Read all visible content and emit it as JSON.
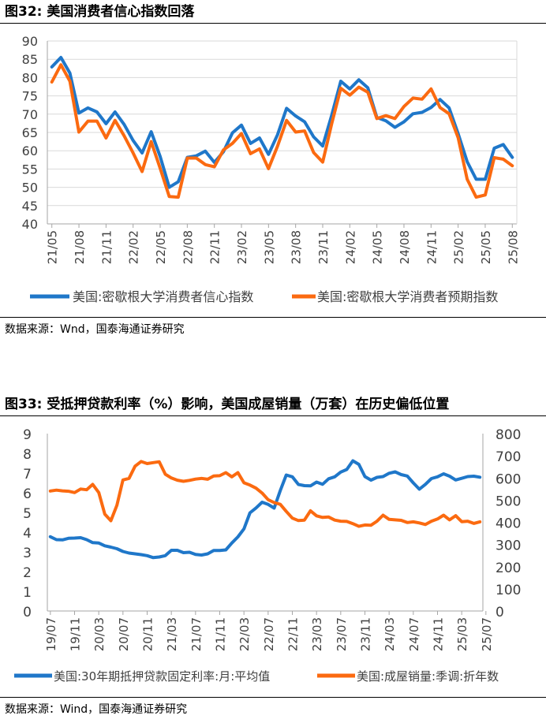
{
  "fig1": {
    "title": "图32:  美国消费者信心指数回落",
    "source": "数据来源：Wnd，国泰海通证券研究"
  },
  "fig2": {
    "title": "图33:  受抵押贷款利率（%）影响，美国成屋销量（万套）在历史偏低位置",
    "source": "数据来源：Wind，国泰海通证券研究"
  },
  "colors": {
    "blue": "#1f77c9",
    "orange": "#fb6a10",
    "grid": "#d9d9d9",
    "axis": "#a6a6a6"
  },
  "chart_data": [
    {
      "type": "line",
      "title": "图32:  美国消费者信心指数回落",
      "x_ticks": [
        "21/05",
        "21/08",
        "21/11",
        "22/02",
        "22/05",
        "22/08",
        "22/11",
        "23/02",
        "23/05",
        "23/08",
        "23/11",
        "24/02",
        "24/05",
        "24/08",
        "24/11",
        "25/02",
        "25/05",
        "25/08"
      ],
      "ylim": [
        40,
        90
      ],
      "y_ticks": [
        40,
        45,
        50,
        55,
        60,
        65,
        70,
        75,
        80,
        85,
        90
      ],
      "grid": true,
      "legend_position": "bottom",
      "series": [
        {
          "name": "美国:密歇根大学消费者信心指数",
          "color": "#1f77c9",
          "values": [
            82.9,
            85.5,
            81.2,
            70.3,
            71.7,
            70.6,
            67.4,
            70.6,
            67.2,
            62.8,
            59.4,
            65.2,
            58.4,
            50.0,
            51.5,
            58.2,
            58.6,
            59.9,
            56.8,
            59.7,
            64.9,
            67.0,
            62.0,
            63.5,
            59.0,
            64.4,
            71.6,
            69.5,
            67.9,
            63.8,
            61.3,
            69.7,
            79.0,
            76.9,
            79.4,
            77.2,
            69.1,
            68.2,
            66.4,
            67.9,
            70.1,
            70.5,
            71.8,
            74.0,
            71.7,
            64.7,
            57.0,
            52.2,
            52.2,
            60.7,
            61.7,
            58.2
          ]
        },
        {
          "name": "美国:密歇根大学消费者预期指数",
          "color": "#fb6a10",
          "values": [
            78.8,
            83.5,
            79.0,
            65.1,
            68.1,
            68.1,
            63.5,
            68.3,
            64.1,
            59.4,
            54.3,
            62.5,
            55.2,
            47.5,
            47.3,
            58.0,
            58.0,
            56.2,
            55.6,
            60.2,
            62.0,
            64.7,
            59.2,
            60.5,
            55.1,
            61.3,
            68.3,
            65.1,
            65.4,
            59.5,
            56.9,
            67.4,
            77.1,
            75.2,
            77.4,
            76.0,
            68.8,
            69.6,
            68.8,
            72.1,
            74.4,
            74.1,
            76.9,
            71.8,
            70.1,
            63.6,
            52.2,
            47.3,
            47.9,
            58.1,
            57.7,
            55.9
          ]
        }
      ]
    },
    {
      "type": "line",
      "title": "图33:  受抵押贷款利率（%）影响，美国成屋销量（万套）在历史偏低位置",
      "x_ticks": [
        "19/07",
        "19/11",
        "20/03",
        "20/07",
        "20/11",
        "21/03",
        "21/07",
        "21/11",
        "22/03",
        "22/07",
        "22/11",
        "23/03",
        "23/07",
        "23/11",
        "24/03",
        "24/07",
        "24/11",
        "25/03",
        "25/07"
      ],
      "y_left": {
        "ylim": [
          0,
          9
        ],
        "ticks": [
          0,
          1,
          2,
          3,
          4,
          5,
          6,
          7,
          8,
          9
        ]
      },
      "y_right": {
        "ylim": [
          0,
          800
        ],
        "ticks": [
          0,
          100,
          200,
          300,
          400,
          500,
          600,
          700,
          800
        ]
      },
      "grid": false,
      "legend_position": "bottom",
      "series": [
        {
          "name": "美国:30年期抵押贷款固定利率:月:平均值",
          "axis": "left",
          "color": "#1f77c9",
          "values": [
            3.77,
            3.62,
            3.61,
            3.69,
            3.7,
            3.72,
            3.62,
            3.47,
            3.45,
            3.31,
            3.24,
            3.16,
            3.02,
            2.94,
            2.9,
            2.86,
            2.81,
            2.71,
            2.74,
            2.81,
            3.08,
            3.08,
            2.96,
            2.98,
            2.87,
            2.84,
            2.9,
            3.07,
            3.07,
            3.1,
            3.45,
            3.76,
            4.17,
            4.98,
            5.23,
            5.52,
            5.41,
            5.22,
            6.11,
            6.9,
            6.81,
            6.42,
            6.36,
            6.35,
            6.54,
            6.43,
            6.71,
            6.81,
            7.05,
            7.18,
            7.62,
            7.44,
            6.82,
            6.64,
            6.78,
            6.82,
            6.99,
            7.06,
            6.92,
            6.85,
            6.5,
            6.18,
            6.43,
            6.72,
            6.81,
            6.96,
            6.84,
            6.65,
            6.73,
            6.82,
            6.84,
            6.79
          ]
        },
        {
          "name": "美国:成屋销量:季调:折年数",
          "axis": "right",
          "color": "#fb6a10",
          "values": [
            541,
            545,
            542,
            540,
            534,
            550,
            547,
            571,
            534,
            437,
            407,
            477,
            591,
            598,
            653,
            674,
            665,
            669,
            673,
            617,
            600,
            590,
            585,
            589,
            595,
            598,
            594,
            609,
            610,
            624,
            605,
            624,
            578,
            568,
            554,
            532,
            502,
            489,
            481,
            449,
            419,
            408,
            410,
            452,
            429,
            422,
            424,
            410,
            405,
            404,
            394,
            382,
            388,
            387,
            405,
            432,
            413,
            411,
            409,
            399,
            402,
            397,
            390,
            405,
            415,
            432,
            411,
            430,
            403,
            405,
            395,
            402
          ]
        }
      ]
    }
  ]
}
